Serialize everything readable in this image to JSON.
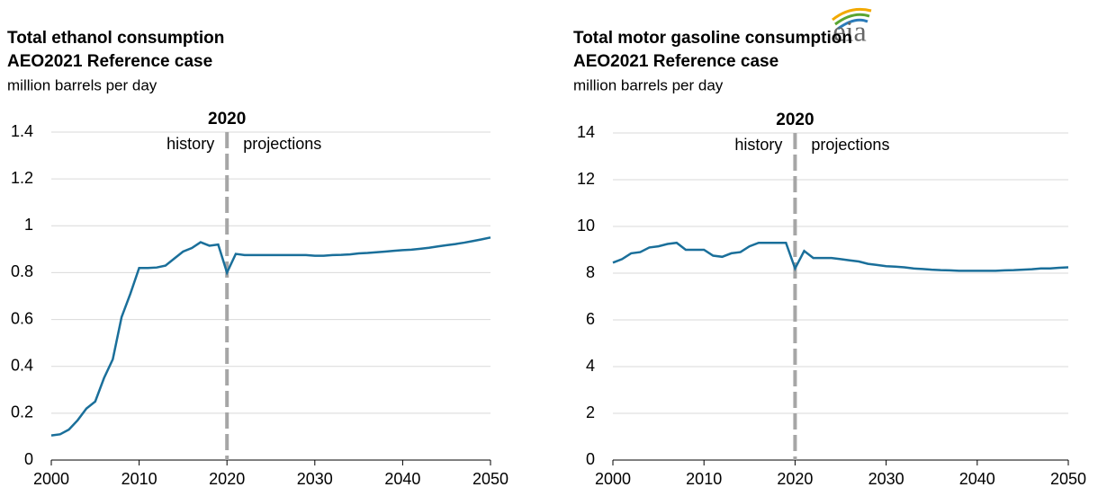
{
  "logo": "eia",
  "chart_data": [
    {
      "type": "line",
      "title": "Total ethanol consumption",
      "subtitle": "AEO2021 Reference case",
      "ylabel": "million  barrels per day",
      "divider": 2020,
      "left_label": "history",
      "right_label": "projections",
      "xlim": [
        2000,
        2050
      ],
      "xticks": [
        2000,
        2010,
        2020,
        2030,
        2040,
        2050
      ],
      "ylim": [
        0,
        1.4
      ],
      "yticks": [
        0,
        0.2,
        0.4,
        0.6,
        0.8,
        1,
        1.2,
        1.4
      ],
      "grid": true,
      "x": [
        2000,
        2001,
        2002,
        2003,
        2004,
        2005,
        2006,
        2007,
        2008,
        2009,
        2010,
        2011,
        2012,
        2013,
        2014,
        2015,
        2016,
        2017,
        2018,
        2019,
        2020,
        2021,
        2022,
        2023,
        2024,
        2025,
        2026,
        2027,
        2028,
        2029,
        2030,
        2031,
        2032,
        2033,
        2034,
        2035,
        2036,
        2037,
        2038,
        2039,
        2040,
        2041,
        2042,
        2043,
        2044,
        2045,
        2046,
        2047,
        2048,
        2049,
        2050
      ],
      "series": [
        {
          "name": "Total ethanol consumption",
          "color": "#1a6f9a",
          "values": [
            0.105,
            0.11,
            0.13,
            0.17,
            0.22,
            0.25,
            0.35,
            0.43,
            0.61,
            0.71,
            0.82,
            0.82,
            0.822,
            0.83,
            0.86,
            0.89,
            0.905,
            0.93,
            0.915,
            0.92,
            0.8,
            0.88,
            0.875,
            0.875,
            0.875,
            0.875,
            0.875,
            0.875,
            0.875,
            0.875,
            0.872,
            0.872,
            0.875,
            0.876,
            0.878,
            0.882,
            0.884,
            0.887,
            0.89,
            0.893,
            0.896,
            0.898,
            0.902,
            0.906,
            0.912,
            0.917,
            0.922,
            0.928,
            0.935,
            0.942,
            0.95
          ]
        }
      ]
    },
    {
      "type": "line",
      "title": "Total motor gasoline consumption",
      "subtitle": "AEO2021 Reference case",
      "ylabel": "million  barrels per day",
      "divider": 2020,
      "left_label": "history",
      "right_label": "projections",
      "xlim": [
        2000,
        2050
      ],
      "xticks": [
        2000,
        2010,
        2020,
        2030,
        2040,
        2050
      ],
      "ylim": [
        0,
        14
      ],
      "yticks": [
        0,
        2,
        4,
        6,
        8,
        10,
        12,
        14
      ],
      "grid": true,
      "x": [
        2000,
        2001,
        2002,
        2003,
        2004,
        2005,
        2006,
        2007,
        2008,
        2009,
        2010,
        2011,
        2012,
        2013,
        2014,
        2015,
        2016,
        2017,
        2018,
        2019,
        2020,
        2021,
        2022,
        2023,
        2024,
        2025,
        2026,
        2027,
        2028,
        2029,
        2030,
        2031,
        2032,
        2033,
        2034,
        2035,
        2036,
        2037,
        2038,
        2039,
        2040,
        2041,
        2042,
        2043,
        2044,
        2045,
        2046,
        2047,
        2048,
        2049,
        2050
      ],
      "series": [
        {
          "name": "Total motor gasoline consumption",
          "color": "#1a6f9a",
          "values": [
            8.45,
            8.6,
            8.85,
            8.9,
            9.1,
            9.15,
            9.25,
            9.3,
            9.0,
            9.0,
            9.0,
            8.75,
            8.7,
            8.85,
            8.9,
            9.15,
            9.3,
            9.3,
            9.3,
            9.3,
            8.2,
            8.95,
            8.65,
            8.65,
            8.65,
            8.6,
            8.55,
            8.5,
            8.4,
            8.35,
            8.3,
            8.28,
            8.25,
            8.2,
            8.18,
            8.15,
            8.13,
            8.12,
            8.1,
            8.1,
            8.1,
            8.1,
            8.1,
            8.12,
            8.13,
            8.15,
            8.17,
            8.2,
            8.2,
            8.23,
            8.25
          ]
        }
      ]
    }
  ]
}
